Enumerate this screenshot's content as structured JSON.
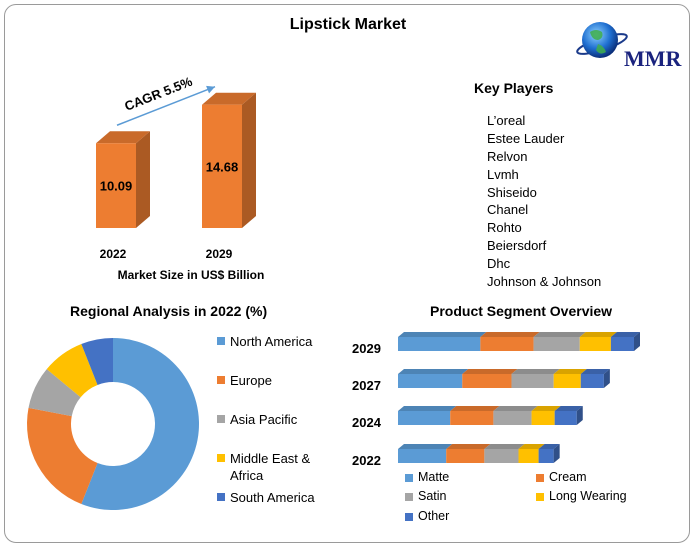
{
  "title": "Lipstick Market",
  "logo": {
    "text": "MMR"
  },
  "market_size": {
    "cagr_label": "CAGR 5.5%",
    "caption": "Market Size in US$ Billion"
  },
  "key_players": {
    "title": "Key Players",
    "items": [
      "L’oreal",
      "Estee Lauder",
      "Relvon",
      "Lvmh",
      "Shiseido",
      "Chanel",
      "Rohto",
      "Beiersdorf",
      "Dhc",
      "Johnson & Johnson"
    ]
  },
  "regional": {
    "title": "Regional Analysis in 2022 (%)"
  },
  "segment": {
    "title": "Product Segment Overview"
  },
  "colors": {
    "orange": "#ed7d31",
    "blue": "#5b9bd5",
    "gray": "#a5a5a5",
    "yellow": "#ffc000",
    "darkblue": "#4472c4",
    "arrow": "#5b9bd5"
  },
  "chart_data": [
    {
      "type": "bar",
      "categories": [
        "2022",
        "2029"
      ],
      "values": [
        10.09,
        14.68
      ],
      "xlabel": "Market Size in US$ Billion",
      "ylim": [
        0,
        16
      ]
    },
    {
      "type": "pie",
      "title": "Regional Analysis in 2022 (%)",
      "labels": [
        "North America",
        "Europe",
        "Asia Pacific",
        "Middle East & Africa",
        "South America"
      ],
      "label_lines": [
        [
          "North America"
        ],
        [
          "Europe"
        ],
        [
          "Asia Pacific"
        ],
        [
          "Middle East &",
          "Africa"
        ],
        [
          "South America"
        ]
      ],
      "values": [
        56,
        22,
        8,
        8,
        6
      ],
      "colors": [
        "#5b9bd5",
        "#ed7d31",
        "#a5a5a5",
        "#ffc000",
        "#4472c4"
      ],
      "donut": true
    },
    {
      "type": "bar",
      "orientation": "horizontal",
      "stacked": true,
      "title": "Product Segment Overview",
      "categories": [
        "2029",
        "2027",
        "2024",
        "2022"
      ],
      "series": [
        {
          "name": "Matte",
          "color": "#5b9bd5",
          "values": [
            82,
            64,
            52,
            48
          ]
        },
        {
          "name": "Cream",
          "color": "#ed7d31",
          "values": [
            53,
            49,
            43,
            38
          ]
        },
        {
          "name": "Satin",
          "color": "#a5a5a5",
          "values": [
            46,
            42,
            38,
            34
          ]
        },
        {
          "name": "Long Wearing",
          "color": "#ffc000",
          "values": [
            31,
            27,
            23,
            20
          ]
        },
        {
          "name": "Other",
          "color": "#4472c4",
          "values": [
            23,
            23,
            22,
            15
          ]
        }
      ],
      "legend": "bottom"
    }
  ]
}
